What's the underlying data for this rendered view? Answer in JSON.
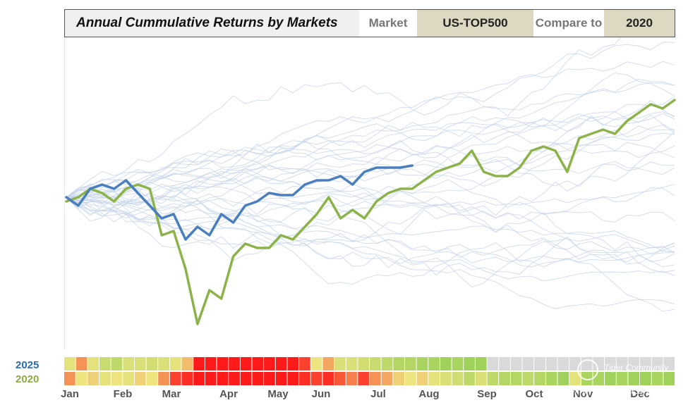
{
  "header": {
    "title": "Annual Cummulative Returns by Markets",
    "market_label": "Market",
    "market_value": "US-TOP500",
    "compare_label": "Compare to",
    "compare_value": "2020"
  },
  "watermark": {
    "line1": "Tiger Community",
    "line2": "@欧洲期货交易所Eurex"
  },
  "colors": {
    "current": "#4a7fbf",
    "compare": "#8cb34a",
    "background": "#c4d3e8",
    "heat_red": "#ff1a1a",
    "heat_green": "#8ccd52",
    "heat_gray": "#d9d9d9"
  },
  "chart_data": {
    "type": "line",
    "title": "Annual Cummulative Returns by Markets",
    "grid": false,
    "x_labels": [
      "Jan",
      "Feb",
      "Mar",
      "Apr",
      "May",
      "Jun",
      "Jul",
      "Aug",
      "Sep",
      "Oct",
      "Nov",
      "Dec"
    ],
    "ylim": [
      -50,
      50
    ],
    "highlight_series": [
      {
        "name": "2025",
        "color": "#4a7fbf",
        "values": [
          0,
          -2,
          2,
          3,
          2,
          4,
          1,
          -2,
          -5,
          -4,
          -10,
          -7,
          -9,
          -4,
          -6,
          -2,
          -1,
          1,
          0.5,
          0.5,
          3,
          4,
          4,
          5,
          3,
          6,
          7,
          7,
          7,
          7.5
        ]
      },
      {
        "name": "2020",
        "color": "#8cb34a",
        "values": [
          -1,
          0,
          2,
          1,
          -1,
          2,
          3,
          2,
          -9,
          -8,
          -17,
          -30,
          -22,
          -24,
          -14,
          -11,
          -12,
          -12,
          -9,
          -10,
          -7,
          -4,
          0,
          -5,
          -3,
          -5,
          -1,
          1,
          2,
          2,
          4,
          6,
          7,
          8,
          11,
          6,
          5,
          5,
          7,
          11,
          12,
          11,
          6,
          14,
          15,
          16,
          15,
          18,
          20,
          22,
          21,
          23
        ]
      }
    ],
    "heatmap": {
      "rows": [
        "2025",
        "2020"
      ],
      "columns_per_month": 4.33,
      "values_2025": [
        0.55,
        0.3,
        0.55,
        0.7,
        0.75,
        0.6,
        0.6,
        0.65,
        0.6,
        0.55,
        0.4,
        0.0,
        0.0,
        0.0,
        0.0,
        0.0,
        0.0,
        0.0,
        0.0,
        0.0,
        0.1,
        0.5,
        0.35,
        0.6,
        0.6,
        0.65,
        0.7,
        0.75,
        0.8,
        0.8,
        0.85,
        0.85,
        0.9,
        0.85,
        0.9,
        0.9,
        null,
        null,
        null,
        null,
        null,
        null,
        null,
        null,
        null,
        null,
        null,
        null,
        null,
        null,
        null,
        null
      ],
      "values_2020": [
        0.3,
        0.5,
        0.45,
        0.55,
        0.5,
        0.55,
        0.45,
        0.5,
        0.3,
        0.1,
        0.05,
        0.0,
        0.0,
        0.0,
        0.0,
        0.0,
        0.0,
        0.0,
        0.0,
        0.0,
        0.05,
        0.1,
        0.05,
        0.15,
        0.25,
        0.1,
        0.3,
        0.35,
        0.45,
        0.5,
        0.45,
        0.55,
        0.6,
        0.65,
        0.75,
        0.6,
        0.75,
        0.8,
        0.8,
        0.75,
        0.8,
        0.85,
        0.9,
        0.55,
        0.85,
        0.85,
        0.9,
        0.85,
        0.9,
        0.9,
        0.85,
        0.9
      ]
    }
  }
}
